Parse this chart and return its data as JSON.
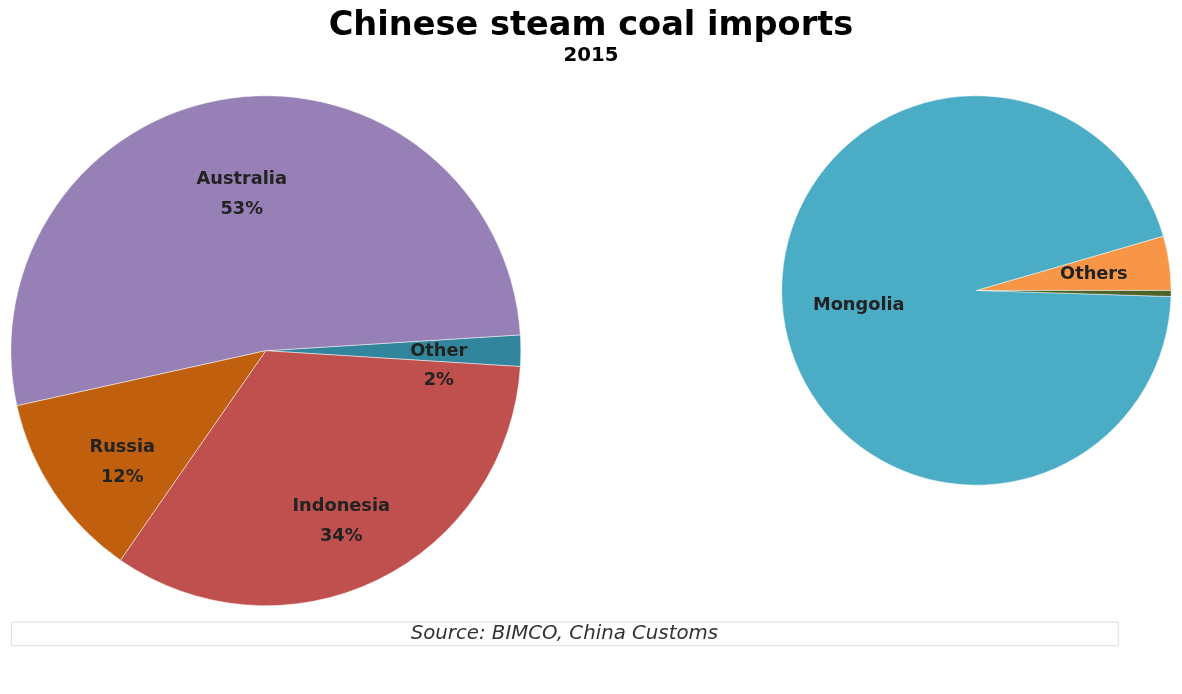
{
  "chart_data": [
    {
      "type": "pie",
      "title": "Chinese steam coal imports",
      "subtitle": "2015",
      "categories": [
        "Other",
        "Australia",
        "Russia",
        "Indonesia"
      ],
      "values": [
        2,
        53,
        12,
        34
      ],
      "value_labels": [
        "2%",
        "53%",
        "12%",
        "34%"
      ],
      "colors": [
        "#31859c",
        "#9680b6",
        "#c0600f",
        "#c0504d"
      ],
      "annotations": [
        "Source: BIMCO, China Customs"
      ]
    },
    {
      "type": "pie",
      "categories": [
        "Others",
        "Mongolia",
        null
      ],
      "values": [
        4.5,
        95,
        0.5
      ],
      "colors": [
        "#f79646",
        "#4bacc6",
        "#4f6228"
      ]
    }
  ]
}
